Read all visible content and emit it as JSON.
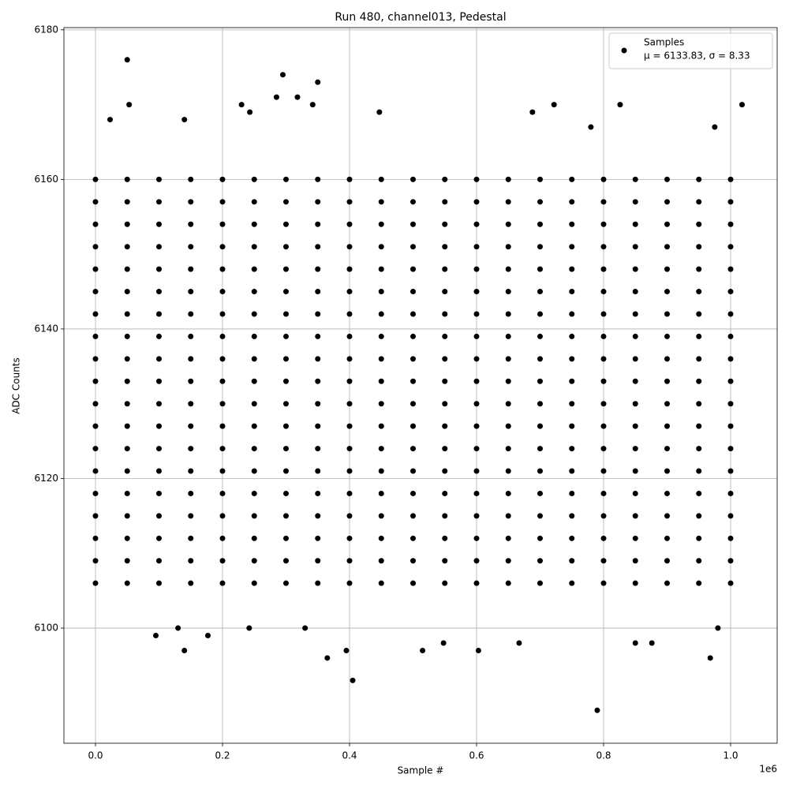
{
  "chart_data": {
    "type": "scatter",
    "title": "Run 480, channel013, Pedestal",
    "x_label": "Sample #",
    "y_label": "ADC Counts",
    "x_offset_label": "1e6",
    "legend_stats": "μ = 6133.83, σ = 8.33",
    "legend": "upper right",
    "grid": true,
    "xlim": [
      -49700,
      1073300
    ],
    "ylim": [
      6084.6,
      6180.3
    ],
    "xticks": [
      {
        "value": 0,
        "label": "0.0"
      },
      {
        "value": 200000,
        "label": "0.2"
      },
      {
        "value": 400000,
        "label": "0.4"
      },
      {
        "value": 600000,
        "label": "0.6"
      },
      {
        "value": 800000,
        "label": "0.8"
      },
      {
        "value": 1000000,
        "label": "1.0"
      }
    ],
    "yticks": [
      6100,
      6120,
      6140,
      6160,
      6180
    ],
    "series": [
      {
        "name": "Samples",
        "color": "#000000",
        "x": [
          50000,
          295000,
          350000,
          285000,
          318000,
          230000,
          53000,
          342000,
          722000,
          826000,
          1018000,
          23000,
          140000,
          405000,
          790000,
          365000,
          968000,
          140000,
          395000,
          515000,
          603000,
          95000,
          177000,
          548000,
          850000,
          876000,
          667000,
          243000,
          447000,
          688000,
          780000,
          975000,
          130000,
          242000,
          330000,
          980000,
          0,
          50000,
          100000,
          150000,
          200000,
          250000,
          300000,
          350000,
          400000,
          450000,
          500000,
          550000,
          600000,
          650000,
          700000,
          750000,
          800000,
          850000,
          900000,
          950000,
          1000000,
          0,
          50000,
          100000,
          150000,
          200000,
          250000,
          300000,
          350000,
          400000,
          450000,
          500000,
          550000,
          600000,
          650000,
          700000,
          750000,
          800000,
          850000,
          900000,
          950000,
          1000000,
          0,
          50000,
          100000,
          150000,
          200000,
          250000,
          300000,
          350000,
          400000,
          450000,
          500000,
          550000,
          600000,
          650000,
          700000,
          750000,
          800000,
          850000,
          900000,
          950000,
          1000000,
          0,
          50000,
          100000,
          150000,
          200000,
          250000,
          300000,
          350000,
          400000,
          450000,
          500000,
          550000,
          600000,
          650000,
          700000,
          750000,
          800000,
          850000,
          900000,
          950000,
          1000000,
          0,
          50000,
          100000,
          150000,
          200000,
          250000,
          300000,
          350000,
          400000,
          450000,
          500000,
          550000,
          600000,
          650000,
          700000,
          750000,
          800000,
          850000,
          900000,
          950000,
          1000000,
          0,
          50000,
          100000,
          150000,
          200000,
          250000,
          300000,
          350000,
          400000,
          450000,
          500000,
          550000,
          600000,
          650000,
          700000,
          750000,
          800000,
          850000,
          900000,
          950000,
          1000000,
          0,
          50000,
          100000,
          150000,
          200000,
          250000,
          300000,
          350000,
          400000,
          450000,
          500000,
          550000,
          600000,
          650000,
          700000,
          750000,
          800000,
          850000,
          900000,
          950000,
          1000000,
          0,
          50000,
          100000,
          150000,
          200000,
          250000,
          300000,
          350000,
          400000,
          450000,
          500000,
          550000,
          600000,
          650000,
          700000,
          750000,
          800000,
          850000,
          900000,
          950000,
          1000000,
          0,
          50000,
          100000,
          150000,
          200000,
          250000,
          300000,
          350000,
          400000,
          450000,
          500000,
          550000,
          600000,
          650000,
          700000,
          750000,
          800000,
          850000,
          900000,
          950000,
          1000000,
          0,
          50000,
          100000,
          150000,
          200000,
          250000,
          300000,
          350000,
          400000,
          450000,
          500000,
          550000,
          600000,
          650000,
          700000,
          750000,
          800000,
          850000,
          900000,
          950000,
          1000000,
          0,
          50000,
          100000,
          150000,
          200000,
          250000,
          300000,
          350000,
          400000,
          450000,
          500000,
          550000,
          600000,
          650000,
          700000,
          750000,
          800000,
          850000,
          900000,
          950000,
          1000000,
          0,
          50000,
          100000,
          150000,
          200000,
          250000,
          300000,
          350000,
          400000,
          450000,
          500000,
          550000,
          600000,
          650000,
          700000,
          750000,
          800000,
          850000,
          900000,
          950000,
          1000000,
          0,
          50000,
          100000,
          150000,
          200000,
          250000,
          300000,
          350000,
          400000,
          450000,
          500000,
          550000,
          600000,
          650000,
          700000,
          750000,
          800000,
          850000,
          900000,
          950000,
          1000000,
          0,
          50000,
          100000,
          150000,
          200000,
          250000,
          300000,
          350000,
          400000,
          450000,
          500000,
          550000,
          600000,
          650000,
          700000,
          750000,
          800000,
          850000,
          900000,
          950000,
          1000000,
          0,
          50000,
          100000,
          150000,
          200000,
          250000,
          300000,
          350000,
          400000,
          450000,
          500000,
          550000,
          600000,
          650000,
          700000,
          750000,
          800000,
          850000,
          900000,
          950000,
          1000000,
          0,
          50000,
          100000,
          150000,
          200000,
          250000,
          300000,
          350000,
          400000,
          450000,
          500000,
          550000,
          600000,
          650000,
          700000,
          750000,
          800000,
          850000,
          900000,
          950000,
          1000000,
          0,
          50000,
          100000,
          150000,
          200000,
          250000,
          300000,
          350000,
          400000,
          450000,
          500000,
          550000,
          600000,
          650000,
          700000,
          750000,
          800000,
          850000,
          900000,
          950000,
          1000000,
          0,
          50000,
          100000,
          150000,
          200000,
          250000,
          300000,
          350000,
          400000,
          450000,
          500000,
          550000,
          600000,
          650000,
          700000,
          750000,
          800000,
          850000,
          900000,
          950000,
          1000000,
          0,
          50000,
          100000,
          150000,
          200000,
          250000,
          300000,
          350000,
          400000,
          450000,
          500000,
          550000,
          600000,
          650000,
          700000,
          750000,
          800000,
          850000,
          900000,
          950000,
          1000000
        ],
        "values": [
          6176,
          6174,
          6173,
          6171,
          6171,
          6170,
          6170,
          6170,
          6170,
          6170,
          6170,
          6168,
          6168,
          6093,
          6089,
          6096,
          6096,
          6097,
          6097,
          6097,
          6097,
          6099,
          6099,
          6098,
          6098,
          6098,
          6098,
          6169,
          6169,
          6169,
          6167,
          6167,
          6100,
          6100,
          6100,
          6100,
          6106,
          6106,
          6106,
          6106,
          6106,
          6106,
          6106,
          6106,
          6106,
          6106,
          6106,
          6106,
          6106,
          6106,
          6106,
          6106,
          6106,
          6106,
          6106,
          6106,
          6106,
          6109,
          6109,
          6109,
          6109,
          6109,
          6109,
          6109,
          6109,
          6109,
          6109,
          6109,
          6109,
          6109,
          6109,
          6109,
          6109,
          6109,
          6109,
          6109,
          6109,
          6109,
          6112,
          6112,
          6112,
          6112,
          6112,
          6112,
          6112,
          6112,
          6112,
          6112,
          6112,
          6112,
          6112,
          6112,
          6112,
          6112,
          6112,
          6112,
          6112,
          6112,
          6112,
          6115,
          6115,
          6115,
          6115,
          6115,
          6115,
          6115,
          6115,
          6115,
          6115,
          6115,
          6115,
          6115,
          6115,
          6115,
          6115,
          6115,
          6115,
          6115,
          6115,
          6115,
          6118,
          6118,
          6118,
          6118,
          6118,
          6118,
          6118,
          6118,
          6118,
          6118,
          6118,
          6118,
          6118,
          6118,
          6118,
          6118,
          6118,
          6118,
          6118,
          6118,
          6118,
          6121,
          6121,
          6121,
          6121,
          6121,
          6121,
          6121,
          6121,
          6121,
          6121,
          6121,
          6121,
          6121,
          6121,
          6121,
          6121,
          6121,
          6121,
          6121,
          6121,
          6121,
          6124,
          6124,
          6124,
          6124,
          6124,
          6124,
          6124,
          6124,
          6124,
          6124,
          6124,
          6124,
          6124,
          6124,
          6124,
          6124,
          6124,
          6124,
          6124,
          6124,
          6124,
          6127,
          6127,
          6127,
          6127,
          6127,
          6127,
          6127,
          6127,
          6127,
          6127,
          6127,
          6127,
          6127,
          6127,
          6127,
          6127,
          6127,
          6127,
          6127,
          6127,
          6127,
          6130,
          6130,
          6130,
          6130,
          6130,
          6130,
          6130,
          6130,
          6130,
          6130,
          6130,
          6130,
          6130,
          6130,
          6130,
          6130,
          6130,
          6130,
          6130,
          6130,
          6130,
          6133,
          6133,
          6133,
          6133,
          6133,
          6133,
          6133,
          6133,
          6133,
          6133,
          6133,
          6133,
          6133,
          6133,
          6133,
          6133,
          6133,
          6133,
          6133,
          6133,
          6133,
          6136,
          6136,
          6136,
          6136,
          6136,
          6136,
          6136,
          6136,
          6136,
          6136,
          6136,
          6136,
          6136,
          6136,
          6136,
          6136,
          6136,
          6136,
          6136,
          6136,
          6136,
          6139,
          6139,
          6139,
          6139,
          6139,
          6139,
          6139,
          6139,
          6139,
          6139,
          6139,
          6139,
          6139,
          6139,
          6139,
          6139,
          6139,
          6139,
          6139,
          6139,
          6139,
          6142,
          6142,
          6142,
          6142,
          6142,
          6142,
          6142,
          6142,
          6142,
          6142,
          6142,
          6142,
          6142,
          6142,
          6142,
          6142,
          6142,
          6142,
          6142,
          6142,
          6142,
          6145,
          6145,
          6145,
          6145,
          6145,
          6145,
          6145,
          6145,
          6145,
          6145,
          6145,
          6145,
          6145,
          6145,
          6145,
          6145,
          6145,
          6145,
          6145,
          6145,
          6145,
          6148,
          6148,
          6148,
          6148,
          6148,
          6148,
          6148,
          6148,
          6148,
          6148,
          6148,
          6148,
          6148,
          6148,
          6148,
          6148,
          6148,
          6148,
          6148,
          6148,
          6148,
          6151,
          6151,
          6151,
          6151,
          6151,
          6151,
          6151,
          6151,
          6151,
          6151,
          6151,
          6151,
          6151,
          6151,
          6151,
          6151,
          6151,
          6151,
          6151,
          6151,
          6151,
          6154,
          6154,
          6154,
          6154,
          6154,
          6154,
          6154,
          6154,
          6154,
          6154,
          6154,
          6154,
          6154,
          6154,
          6154,
          6154,
          6154,
          6154,
          6154,
          6154,
          6154,
          6157,
          6157,
          6157,
          6157,
          6157,
          6157,
          6157,
          6157,
          6157,
          6157,
          6157,
          6157,
          6157,
          6157,
          6157,
          6157,
          6157,
          6157,
          6157,
          6157,
          6157,
          6160,
          6160,
          6160,
          6160,
          6160,
          6160,
          6160,
          6160,
          6160,
          6160,
          6160,
          6160,
          6160,
          6160,
          6160,
          6160,
          6160,
          6160,
          6160,
          6160,
          6160
        ]
      }
    ]
  }
}
